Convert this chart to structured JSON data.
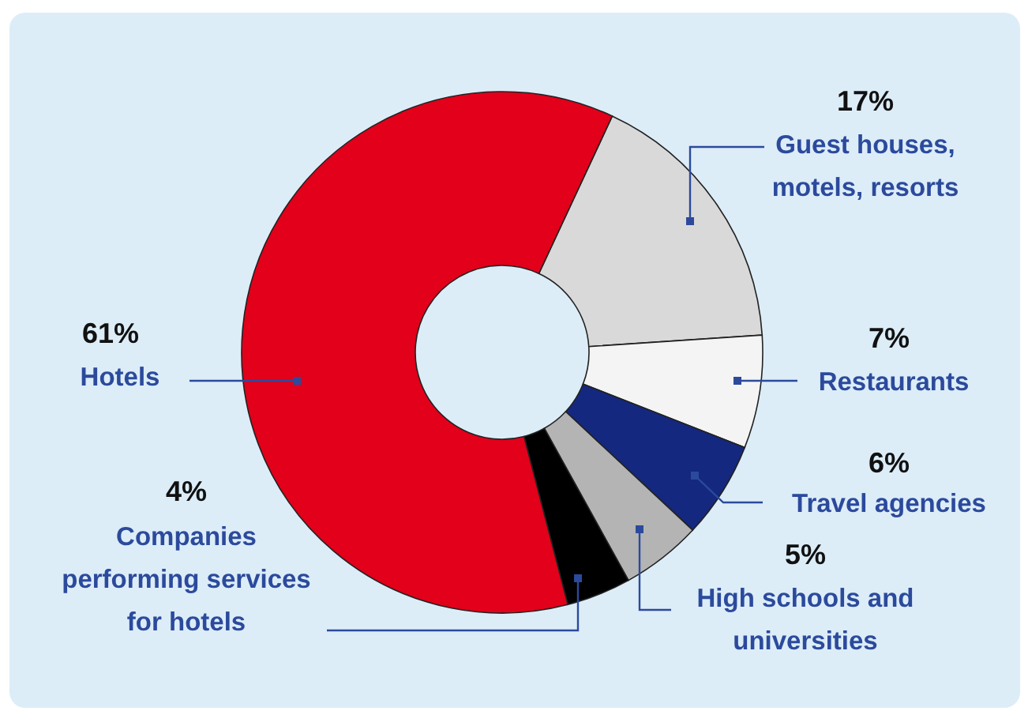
{
  "chart_data": {
    "type": "donut",
    "categories": [
      "Guest houses,\nmotels, resorts",
      "Restaurants",
      "Travel agencies",
      "High schools and\nuniversities",
      "Companies\nperforming services\nfor hotels",
      "Hotels"
    ],
    "values": [
      17,
      7,
      6,
      5,
      4,
      61
    ],
    "value_labels": [
      "17%",
      "7%",
      "6%",
      "5%",
      "4%",
      "61%"
    ],
    "colors": [
      "#d9d9d9",
      "#f4f4f4",
      "#14287f",
      "#b4b4b4",
      "#000000",
      "#e2001a"
    ]
  }
}
